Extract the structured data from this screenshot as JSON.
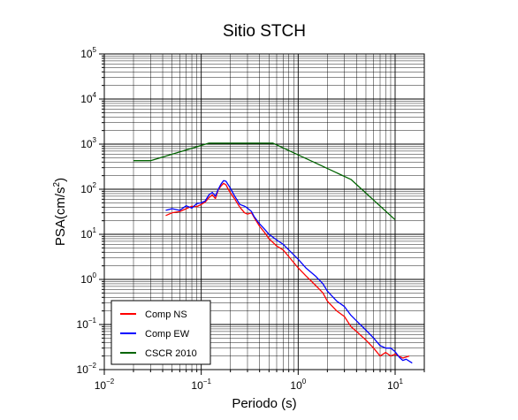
{
  "chart_data": {
    "type": "line",
    "title": "Sitio STCH",
    "xlabel": "Periodo (s)",
    "ylabel_main": "PSA(cm/s",
    "ylabel_sup": "2",
    "ylabel_close": ")",
    "xscale": "log",
    "yscale": "log",
    "xlim": [
      0.01,
      20
    ],
    "ylim": [
      0.01,
      100000
    ],
    "grid": true,
    "legend_position": "bottom-left",
    "x_ticks": [
      {
        "base": "10",
        "exp": "−2",
        "value": 0.01
      },
      {
        "base": "10",
        "exp": "−1",
        "value": 0.1
      },
      {
        "base": "10",
        "exp": "0",
        "value": 1
      },
      {
        "base": "10",
        "exp": "1",
        "value": 10
      }
    ],
    "y_ticks": [
      {
        "base": "10",
        "exp": "−2",
        "value": 0.01
      },
      {
        "base": "10",
        "exp": "−1",
        "value": 0.1
      },
      {
        "base": "10",
        "exp": "0",
        "value": 1
      },
      {
        "base": "10",
        "exp": "1",
        "value": 10
      },
      {
        "base": "10",
        "exp": "2",
        "value": 100
      },
      {
        "base": "10",
        "exp": "3",
        "value": 1000
      },
      {
        "base": "10",
        "exp": "4",
        "value": 10000
      },
      {
        "base": "10",
        "exp": "5",
        "value": 100000
      }
    ],
    "series": [
      {
        "name": "Comp NS",
        "color": "#ff0000",
        "points": [
          [
            0.043,
            26
          ],
          [
            0.05,
            30
          ],
          [
            0.06,
            32
          ],
          [
            0.07,
            37
          ],
          [
            0.08,
            42
          ],
          [
            0.09,
            41
          ],
          [
            0.1,
            46
          ],
          [
            0.11,
            52
          ],
          [
            0.12,
            65
          ],
          [
            0.13,
            75
          ],
          [
            0.14,
            62
          ],
          [
            0.15,
            98
          ],
          [
            0.16,
            118
          ],
          [
            0.17,
            135
          ],
          [
            0.18,
            125
          ],
          [
            0.19,
            100
          ],
          [
            0.2,
            83
          ],
          [
            0.22,
            62
          ],
          [
            0.25,
            40
          ],
          [
            0.28,
            30
          ],
          [
            0.3,
            28
          ],
          [
            0.33,
            30
          ],
          [
            0.35,
            24
          ],
          [
            0.4,
            15
          ],
          [
            0.45,
            11
          ],
          [
            0.5,
            8
          ],
          [
            0.6,
            5.5
          ],
          [
            0.7,
            4.5
          ],
          [
            0.8,
            3.2
          ],
          [
            1.0,
            1.8
          ],
          [
            1.2,
            1.2
          ],
          [
            1.5,
            0.75
          ],
          [
            1.8,
            0.5
          ],
          [
            2.0,
            0.33
          ],
          [
            2.5,
            0.2
          ],
          [
            3.0,
            0.15
          ],
          [
            3.5,
            0.09
          ],
          [
            4.0,
            0.07
          ],
          [
            5.0,
            0.045
          ],
          [
            6.0,
            0.03
          ],
          [
            7.0,
            0.02
          ],
          [
            8.0,
            0.024
          ],
          [
            9.0,
            0.02
          ],
          [
            10.0,
            0.022
          ],
          [
            12.0,
            0.018
          ],
          [
            14.0,
            0.02
          ]
        ]
      },
      {
        "name": "Comp EW",
        "color": "#0000ff",
        "points": [
          [
            0.043,
            34
          ],
          [
            0.05,
            37
          ],
          [
            0.06,
            34
          ],
          [
            0.07,
            43
          ],
          [
            0.08,
            38
          ],
          [
            0.09,
            48
          ],
          [
            0.1,
            50
          ],
          [
            0.11,
            55
          ],
          [
            0.12,
            75
          ],
          [
            0.13,
            85
          ],
          [
            0.14,
            70
          ],
          [
            0.15,
            100
          ],
          [
            0.16,
            130
          ],
          [
            0.17,
            155
          ],
          [
            0.18,
            150
          ],
          [
            0.19,
            125
          ],
          [
            0.2,
            105
          ],
          [
            0.22,
            72
          ],
          [
            0.25,
            46
          ],
          [
            0.28,
            42
          ],
          [
            0.3,
            38
          ],
          [
            0.33,
            32
          ],
          [
            0.35,
            25
          ],
          [
            0.4,
            17
          ],
          [
            0.45,
            13
          ],
          [
            0.5,
            10
          ],
          [
            0.6,
            7.5
          ],
          [
            0.7,
            6
          ],
          [
            0.8,
            4.5
          ],
          [
            1.0,
            2.8
          ],
          [
            1.2,
            1.8
          ],
          [
            1.5,
            1.2
          ],
          [
            1.8,
            0.8
          ],
          [
            2.0,
            0.55
          ],
          [
            2.5,
            0.33
          ],
          [
            3.0,
            0.25
          ],
          [
            3.5,
            0.16
          ],
          [
            4.0,
            0.12
          ],
          [
            5.0,
            0.075
          ],
          [
            6.0,
            0.05
          ],
          [
            7.0,
            0.034
          ],
          [
            8.0,
            0.03
          ],
          [
            9.0,
            0.03
          ],
          [
            10.0,
            0.025
          ],
          [
            11.0,
            0.019
          ],
          [
            12.0,
            0.016
          ],
          [
            13.0,
            0.017
          ],
          [
            15.0,
            0.014
          ]
        ]
      },
      {
        "name": "CSCR 2010",
        "color": "#006400",
        "points": [
          [
            0.02,
            430
          ],
          [
            0.03,
            430
          ],
          [
            0.12,
            1050
          ],
          [
            0.55,
            1050
          ],
          [
            3.5,
            165
          ],
          [
            10.0,
            21
          ]
        ]
      }
    ]
  }
}
